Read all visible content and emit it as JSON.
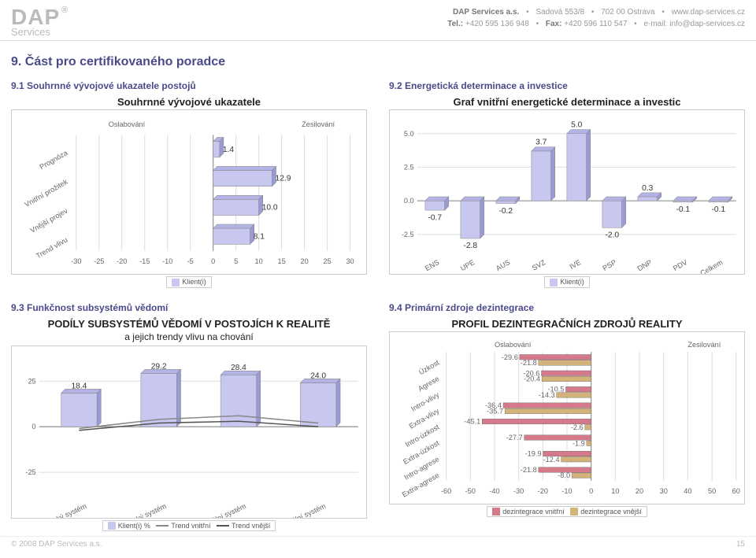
{
  "header": {
    "logo_main": "DAP",
    "logo_sub": "Services",
    "line1_company": "DAP Services a.s.",
    "line1_addr": "Sadová 553/8",
    "line1_zip": "702 00 Ostrava",
    "line1_web": "www.dap-services.cz",
    "line2_tel_lbl": "Tel.:",
    "line2_tel": "+420 595 136 948",
    "line2_fax_lbl": "Fax:",
    "line2_fax": "+420 596 110 547",
    "line2_mail_lbl": "e-mail:",
    "line2_mail": "info@dap-services.cz"
  },
  "section_title": "9. Část pro certifikovaného poradce",
  "c1": {
    "head": "9.1 Souhrnné vývojové ukazatele postojů",
    "title": "Souhrnné vývojové ukazatele",
    "left_label": "Oslabování",
    "right_label": "Zesilování",
    "categories": [
      "Prognóza",
      "Vnitřní prožitek",
      "Vnější projev",
      "Trend vlivu"
    ],
    "values": [
      1.4,
      12.9,
      10.0,
      8.1
    ],
    "xmin": -30,
    "xmax": 30,
    "xstep": 5,
    "bar_fill": "#c7c7f0",
    "bar_top": "#b3b3e6",
    "bar_side": "#9a9ad6",
    "legend": "Klient(i)"
  },
  "c2": {
    "head": "9.2 Energetická determinace a investice",
    "title": "Graf vnitřní energetické determinace a investic",
    "categories": [
      "ENS",
      "UPE",
      "AUS",
      "SVZ",
      "IVE",
      "PSP",
      "DNP",
      "PDV",
      "Celkem"
    ],
    "values": [
      -0.7,
      -2.8,
      -0.2,
      3.7,
      5.0,
      -2.0,
      0.3,
      -0.1,
      -0.1
    ],
    "ymin": -2.5,
    "ymax": 5.0,
    "ystep": 2.5,
    "yticks": [
      "5.0",
      "2.5",
      "0.0",
      "-2.5"
    ],
    "bar_fill": "#c7c7f0",
    "bar_top": "#b3b3e6",
    "bar_side": "#9a9ad6",
    "legend": "Klient(i)"
  },
  "c3": {
    "head": "9.3 Funkčnost subsystémů vědomí",
    "title": "PODÍLY SUBSYSTÉMŮ VĚDOMÍ V POSTOJÍCH K REALITĚ",
    "subtitle": "a jejich trendy vlivu na chování",
    "categories": [
      "Somatický systém",
      "Energetický systém",
      "Mentální systém",
      "Sociální systém"
    ],
    "bars": [
      18.4,
      29.2,
      28.4,
      24.0
    ],
    "line1": [
      -1,
      4,
      6,
      2
    ],
    "line2": [
      -2,
      2,
      3,
      0
    ],
    "ymin": -25,
    "ymax": 25,
    "ystep": 25,
    "bar_fill": "#c7c7f0",
    "bar_top": "#b3b3e6",
    "bar_side": "#9a9ad6",
    "line1_color": "#888888",
    "line2_color": "#555555",
    "legend_bar": "Klient(i) %",
    "legend_l1": "Trend vnitřní",
    "legend_l2": "Trend vnější"
  },
  "c4": {
    "head": "9.4 Primární zdroje dezintegrace",
    "title": "PROFIL DEZINTEGRAČNÍCH ZDROJŮ REALITY",
    "left_label": "Oslabování",
    "right_label": "Zesilování",
    "categories": [
      "Úzkost",
      "Agrese",
      "Intro-vlivy",
      "Extra-vlivy",
      "Intro-úzkost",
      "Extra-úzkost",
      "Intro-agrese",
      "Extra-agrese"
    ],
    "series1": [
      -29.6,
      -20.6,
      -10.5,
      -36.4,
      -45.1,
      -27.7,
      -19.9,
      -21.8
    ],
    "series2": [
      -21.8,
      -20.4,
      -14.3,
      -35.7,
      -2.6,
      -1.9,
      -12.4,
      -8.0
    ],
    "xmin": -60,
    "xmax": 60,
    "xstep": 10,
    "s1_color": "#d47a8a",
    "s2_color": "#d4b37a",
    "legend_s1": "dezintegrace vnitřní",
    "legend_s2": "dezintegrace vnější"
  },
  "footer": {
    "copyright": "© 2008 DAP Services a.s.",
    "page": "15"
  }
}
